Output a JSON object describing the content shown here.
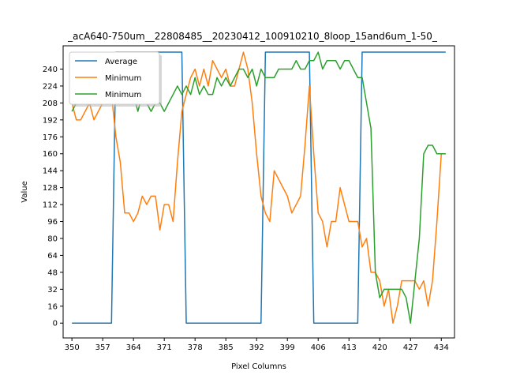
{
  "chart_data": {
    "type": "line",
    "title": "_acA640-750um__22808485__20230412_100910210_8loop_15and6um_1-50_",
    "xlabel": "Pixel Columns",
    "ylabel": "Value",
    "xlim": [
      348,
      437
    ],
    "ylim": [
      -14,
      262
    ],
    "xticks": [
      350,
      357,
      364,
      371,
      378,
      385,
      392,
      399,
      406,
      413,
      420,
      427,
      434
    ],
    "yticks": [
      0,
      16,
      32,
      48,
      64,
      80,
      96,
      112,
      128,
      144,
      160,
      176,
      192,
      208,
      224,
      240
    ],
    "grid": false,
    "legend_position": "top-left",
    "series": [
      {
        "name": "Average",
        "color": "#1f77b4",
        "x": [
          350,
          351,
          352,
          353,
          354,
          355,
          356,
          357,
          358,
          359,
          360,
          361,
          362,
          363,
          364,
          365,
          366,
          367,
          368,
          369,
          370,
          371,
          372,
          373,
          374,
          375,
          376,
          377,
          378,
          379,
          380,
          381,
          382,
          383,
          384,
          385,
          386,
          387,
          388,
          389,
          390,
          391,
          392,
          393,
          394,
          395,
          396,
          397,
          398,
          399,
          400,
          401,
          402,
          403,
          404,
          405,
          406,
          407,
          408,
          409,
          410,
          411,
          412,
          413,
          414,
          415,
          416,
          417,
          418,
          419,
          420,
          421,
          422,
          423,
          424,
          425,
          426,
          427,
          428,
          429,
          430,
          431,
          432,
          433,
          434,
          435
        ],
        "y": [
          0,
          0,
          0,
          0,
          0,
          0,
          0,
          0,
          0,
          0,
          256,
          256,
          256,
          256,
          256,
          256,
          256,
          256,
          256,
          256,
          256,
          256,
          256,
          256,
          256,
          256,
          0,
          0,
          0,
          0,
          0,
          0,
          0,
          0,
          0,
          0,
          0,
          0,
          0,
          0,
          0,
          0,
          0,
          0,
          256,
          256,
          256,
          256,
          256,
          256,
          256,
          256,
          256,
          256,
          256,
          0,
          0,
          0,
          0,
          0,
          0,
          0,
          0,
          0,
          0,
          0,
          256,
          256,
          256,
          256,
          256,
          256,
          256,
          256,
          256,
          256,
          256,
          256,
          256,
          256,
          256,
          256,
          256,
          256,
          256,
          256
        ]
      },
      {
        "name": "Minimum",
        "color": "#ff7f0e",
        "x": [
          350,
          351,
          352,
          353,
          354,
          355,
          356,
          357,
          358,
          359,
          360,
          361,
          362,
          363,
          364,
          365,
          366,
          367,
          368,
          369,
          370,
          371,
          372,
          373,
          374,
          375,
          376,
          377,
          378,
          379,
          380,
          381,
          382,
          383,
          384,
          385,
          386,
          387,
          388,
          389,
          390,
          391,
          392,
          393,
          394,
          395,
          396,
          397,
          398,
          399,
          400,
          401,
          402,
          403,
          404,
          405,
          406,
          407,
          408,
          409,
          410,
          411,
          412,
          413,
          414,
          415,
          416,
          417,
          418,
          419,
          420,
          421,
          422,
          423,
          424,
          425,
          426,
          427,
          428,
          429,
          430,
          431,
          432,
          433,
          434,
          435
        ],
        "y": [
          208,
          192,
          192,
          200,
          208,
          192,
          200,
          208,
          216,
          216,
          176,
          152,
          104,
          104,
          96,
          104,
          120,
          112,
          120,
          120,
          88,
          112,
          112,
          96,
          152,
          200,
          216,
          232,
          240,
          224,
          240,
          224,
          248,
          240,
          232,
          240,
          224,
          224,
          240,
          256,
          240,
          208,
          160,
          120,
          104,
          96,
          144,
          136,
          128,
          120,
          104,
          112,
          120,
          168,
          224,
          160,
          104,
          96,
          72,
          96,
          96,
          128,
          112,
          96,
          96,
          96,
          72,
          80,
          48,
          48,
          40,
          16,
          32,
          0,
          16,
          40,
          40,
          40,
          40,
          32,
          40,
          16,
          40,
          96,
          160,
          160
        ]
      },
      {
        "name": "Minimum",
        "color": "#2ca02c",
        "x": [
          350,
          351,
          352,
          353,
          354,
          355,
          356,
          357,
          358,
          359,
          360,
          361,
          362,
          363,
          364,
          365,
          366,
          367,
          368,
          369,
          370,
          371,
          372,
          373,
          374,
          375,
          376,
          377,
          378,
          379,
          380,
          381,
          382,
          383,
          384,
          385,
          386,
          387,
          388,
          389,
          390,
          391,
          392,
          393,
          394,
          395,
          396,
          397,
          398,
          399,
          400,
          401,
          402,
          403,
          404,
          405,
          406,
          407,
          408,
          409,
          410,
          411,
          412,
          413,
          414,
          415,
          416,
          417,
          418,
          419,
          420,
          421,
          422,
          423,
          424,
          425,
          426,
          427,
          428,
          429,
          430,
          431,
          432,
          433,
          434,
          435
        ],
        "y": [
          200,
          208,
          208,
          208,
          208,
          208,
          216,
          216,
          216,
          216,
          208,
          216,
          216,
          208,
          216,
          200,
          216,
          208,
          200,
          208,
          208,
          200,
          208,
          216,
          224,
          216,
          224,
          216,
          232,
          216,
          224,
          216,
          216,
          232,
          224,
          232,
          224,
          232,
          240,
          240,
          232,
          240,
          224,
          240,
          232,
          232,
          232,
          240,
          240,
          240,
          240,
          248,
          240,
          240,
          248,
          248,
          256,
          240,
          248,
          248,
          248,
          240,
          248,
          248,
          240,
          232,
          232,
          208,
          184,
          48,
          24,
          32,
          32,
          32,
          32,
          32,
          24,
          0,
          40,
          80,
          160,
          168,
          168,
          160,
          160,
          160
        ]
      }
    ]
  }
}
